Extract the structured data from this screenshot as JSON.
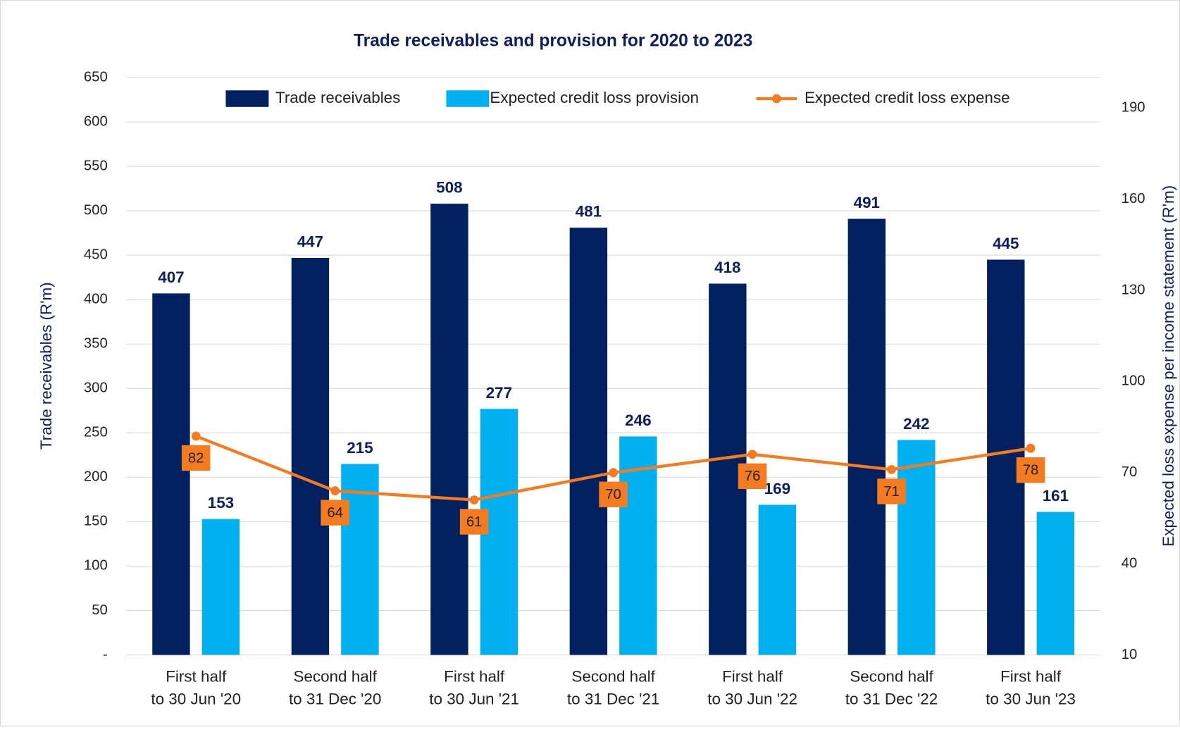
{
  "chart_data": {
    "type": "bar",
    "title": "Trade receivables and provision for 2020 to 2023",
    "y_label": "Trade receivables (R'm)",
    "y2_label": "Expected loss expense per income statement (R'm)",
    "categories": [
      [
        "First half",
        "to 30 Jun '20"
      ],
      [
        "Second half",
        "to 31 Dec '20"
      ],
      [
        "First half",
        "to 30 Jun '21"
      ],
      [
        "Second half",
        "to 31 Dec '21"
      ],
      [
        "First half",
        "to 30 Jun '22"
      ],
      [
        "Second half",
        "to 31 Dec '22"
      ],
      [
        "First half",
        "to 30 Jun '23"
      ]
    ],
    "series": [
      {
        "name": "Trade receivables",
        "type": "bar",
        "color": "#002060",
        "values": [
          407,
          447,
          508,
          481,
          418,
          491,
          445
        ]
      },
      {
        "name": "Expected credit loss provision",
        "type": "bar",
        "color": "#00b0f0",
        "values": [
          153,
          215,
          277,
          246,
          169,
          242,
          161
        ]
      },
      {
        "name": "Expected credit loss expense",
        "type": "line",
        "axis": "y2",
        "color": "#f47c20",
        "values": [
          82,
          64,
          61,
          70,
          76,
          71,
          78
        ]
      }
    ],
    "ylim": [
      0,
      650
    ],
    "yticks": [
      {
        "value": 0,
        "label": "-"
      },
      50,
      100,
      150,
      200,
      250,
      300,
      350,
      400,
      450,
      500,
      550,
      600,
      650
    ],
    "y2lim": [
      10,
      200
    ],
    "y2ticks": [
      10,
      40,
      70,
      100,
      130,
      160,
      190
    ],
    "grid": true
  }
}
